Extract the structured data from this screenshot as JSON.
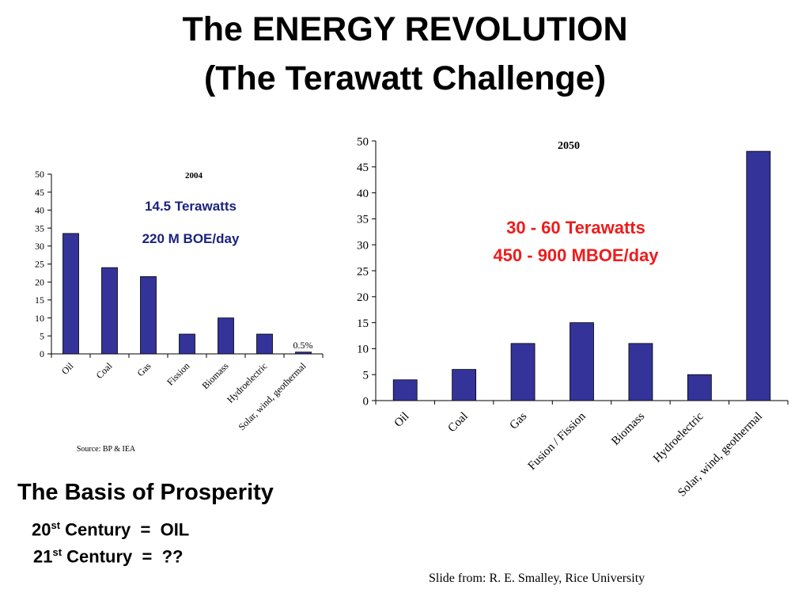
{
  "slide": {
    "title_line1": "The  ENERGY REVOLUTION",
    "title_line2": "(The Terawatt  Challenge)",
    "basis_title": "The Basis of Prosperity",
    "century20": {
      "num": "20",
      "sup": "st",
      "text": " Century  =  OIL"
    },
    "century21": {
      "num": "21",
      "sup": "st",
      "text": " Century  =  ??"
    },
    "credit": "Slide from: R. E. Smalley, Rice University"
  },
  "chart_data": [
    {
      "type": "bar",
      "title": "2004",
      "categories": [
        "Oil",
        "Coal",
        "Gas",
        "Fission",
        "Biomass",
        "Hydroelectric",
        "Solar, wind, geothermal"
      ],
      "values": [
        33.5,
        24,
        21.5,
        5.5,
        10,
        5.5,
        0.5
      ],
      "ylim": [
        0,
        50
      ],
      "yticks": [
        0,
        5,
        10,
        15,
        20,
        25,
        30,
        35,
        40,
        45,
        50
      ],
      "annotations": [
        "14.5 Terawatts",
        "220 M BOE/day",
        "0.5%"
      ],
      "source": "Source: BP & IEA",
      "bar_color": "#333399",
      "annotation_color": "#1a237e"
    },
    {
      "type": "bar",
      "title": "2050",
      "categories": [
        "Oil",
        "Coal",
        "Gas",
        "Fusion / Fission",
        "Biomass",
        "Hydroelectric",
        "Solar, wind, geothermal"
      ],
      "values": [
        4,
        6,
        11,
        15,
        11,
        5,
        48
      ],
      "ylim": [
        0,
        50
      ],
      "yticks": [
        0,
        5,
        10,
        15,
        20,
        25,
        30,
        35,
        40,
        45,
        50
      ],
      "annotations": [
        "30 - 60 Terawatts",
        "450 - 900  MBOE/day"
      ],
      "bar_color": "#333399",
      "annotation_color": "#ee1c1c"
    }
  ]
}
